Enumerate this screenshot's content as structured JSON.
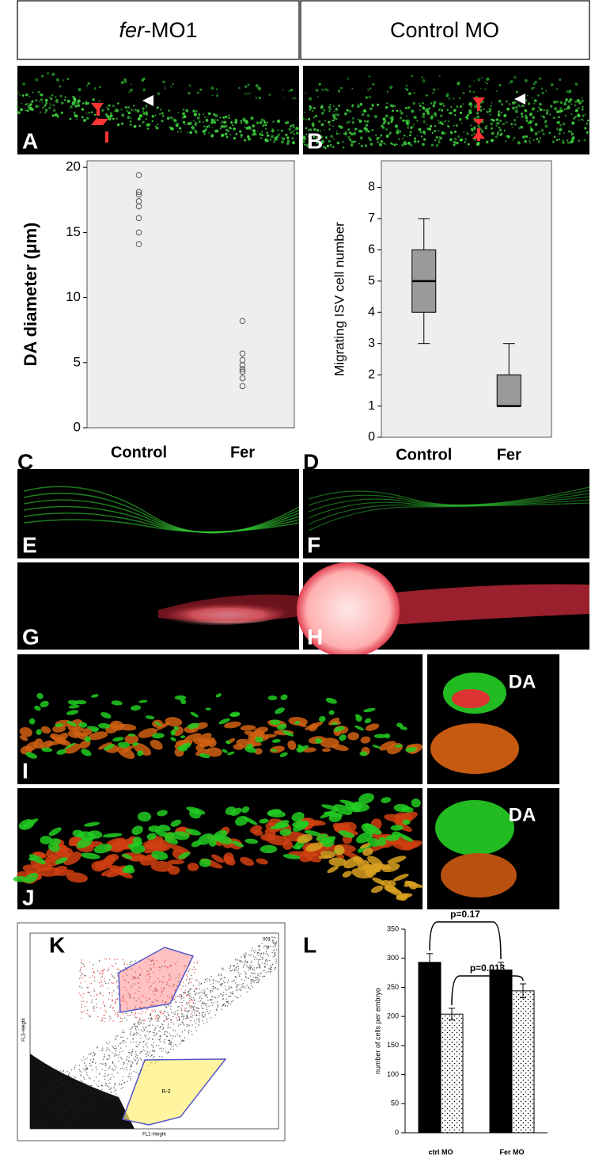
{
  "header": {
    "left_italic": "fer",
    "left_rest": "-MO1",
    "right": "Control MO"
  },
  "panels": [
    "A",
    "B",
    "C",
    "D",
    "E",
    "F",
    "G",
    "H",
    "I",
    "J",
    "K",
    "L"
  ],
  "da_labels": [
    "DA",
    "DA"
  ],
  "flow": {
    "y_label": "FL3-Height",
    "x_label": "FL1-Height",
    "gate": "R-2",
    "file": "001"
  },
  "chart_data": [
    {
      "type": "scatter",
      "ylabel": "DA diameter (µm)",
      "categories": [
        "Control",
        "Fer"
      ],
      "values": [
        [
          19.4,
          18.1,
          17.9,
          17.4,
          17.0,
          16.1,
          15.0,
          14.1
        ],
        [
          8.2,
          5.7,
          5.2,
          4.8,
          4.5,
          4.3,
          3.8,
          3.2
        ]
      ],
      "ylim": [
        0,
        20.5
      ],
      "yticks": [
        0,
        5,
        10,
        15,
        20
      ],
      "color": "#555555",
      "background": "#eeeeee"
    },
    {
      "type": "box",
      "ylabel": "Migrating ISV cell number",
      "categories": [
        "Control",
        "Fer"
      ],
      "boxes": [
        {
          "min": 3,
          "q1": 4,
          "median": 5,
          "q3": 6,
          "max": 7
        },
        {
          "min": 1,
          "q1": 1,
          "median": 1,
          "q3": 2,
          "max": 3
        }
      ],
      "ylim": [
        0,
        8.85
      ],
      "yticks": [
        0,
        1,
        2,
        3,
        4,
        5,
        6,
        7,
        8
      ],
      "color": "#9a9a9a",
      "background": "#eeeeee"
    },
    {
      "type": "bar",
      "ylabel": "number of cells per embryo",
      "categories": [
        "ctrl MO",
        "Fer MO"
      ],
      "series": [
        {
          "color": "#000000",
          "values": [
            293,
            280
          ],
          "errors": [
            15,
            13
          ]
        },
        {
          "color": "#ffffff",
          "pattern": "dots",
          "values": [
            204,
            244
          ],
          "errors": [
            10,
            12
          ]
        }
      ],
      "annotations": [
        "p=0.17",
        "p=0.013"
      ],
      "ylim": [
        0,
        350
      ],
      "yticks": [
        0,
        50,
        100,
        150,
        200,
        250,
        300,
        350
      ],
      "background": "#ffffff"
    }
  ]
}
